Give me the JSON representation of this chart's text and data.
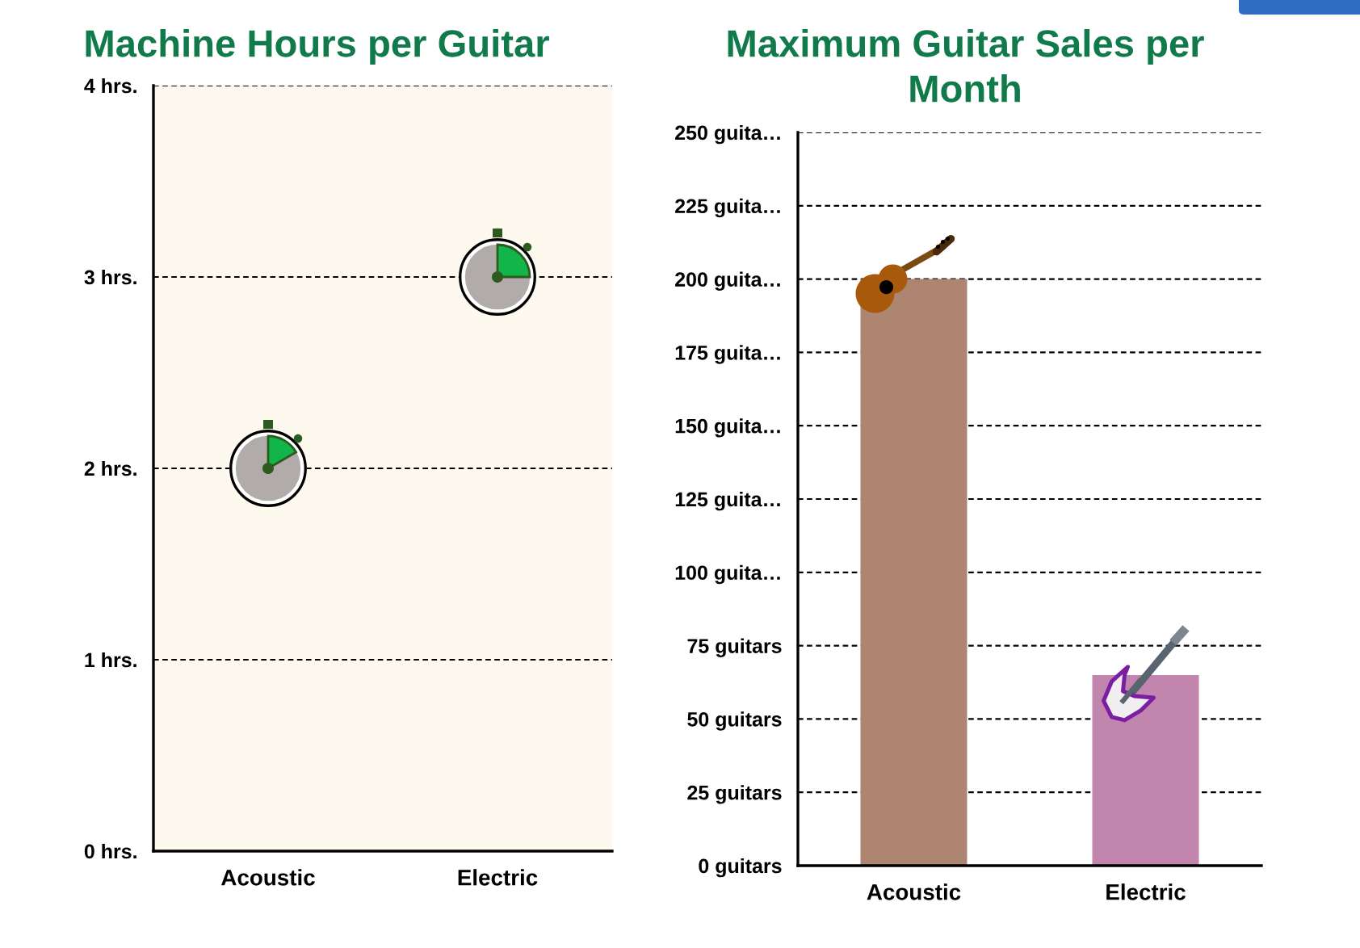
{
  "chart_data": [
    {
      "type": "scatter",
      "title": "Machine Hours per Guitar",
      "categories": [
        "Acoustic",
        "Electric"
      ],
      "series": [
        {
          "color": "#b1abaa",
          "values": [
            2,
            3
          ]
        }
      ],
      "marker": "circle",
      "ylim": [
        0,
        4
      ],
      "yticks": [
        {
          "value": 0,
          "label": "0 hrs."
        },
        {
          "value": 1,
          "label": "1 hrs."
        },
        {
          "value": 2,
          "label": "2 hrs."
        },
        {
          "value": 3,
          "label": "3 hrs."
        },
        {
          "value": 4,
          "label": "4 hrs."
        }
      ],
      "grid": "y"
    },
    {
      "type": "bar",
      "title": "Maximum Guitar Sales per Month",
      "categories": [
        "Acoustic",
        "Electric"
      ],
      "values": [
        200,
        65
      ],
      "colors": [
        "#ae8570",
        "#c286ae"
      ],
      "ylim": [
        0,
        250
      ],
      "yticks": [
        {
          "value": 0,
          "label": "0 guitars"
        },
        {
          "value": 25,
          "label": "25 guitars"
        },
        {
          "value": 50,
          "label": "50 guitars"
        },
        {
          "value": 75,
          "label": "75 guitars"
        },
        {
          "value": 100,
          "label": "100 guita…"
        },
        {
          "value": 125,
          "label": "125 guita…"
        },
        {
          "value": 150,
          "label": "150 guita…"
        },
        {
          "value": 175,
          "label": "175 guita…"
        },
        {
          "value": 200,
          "label": "200 guita…"
        },
        {
          "value": 225,
          "label": "225 guita…"
        },
        {
          "value": 250,
          "label": "250 guita…"
        }
      ],
      "grid": "y"
    }
  ]
}
